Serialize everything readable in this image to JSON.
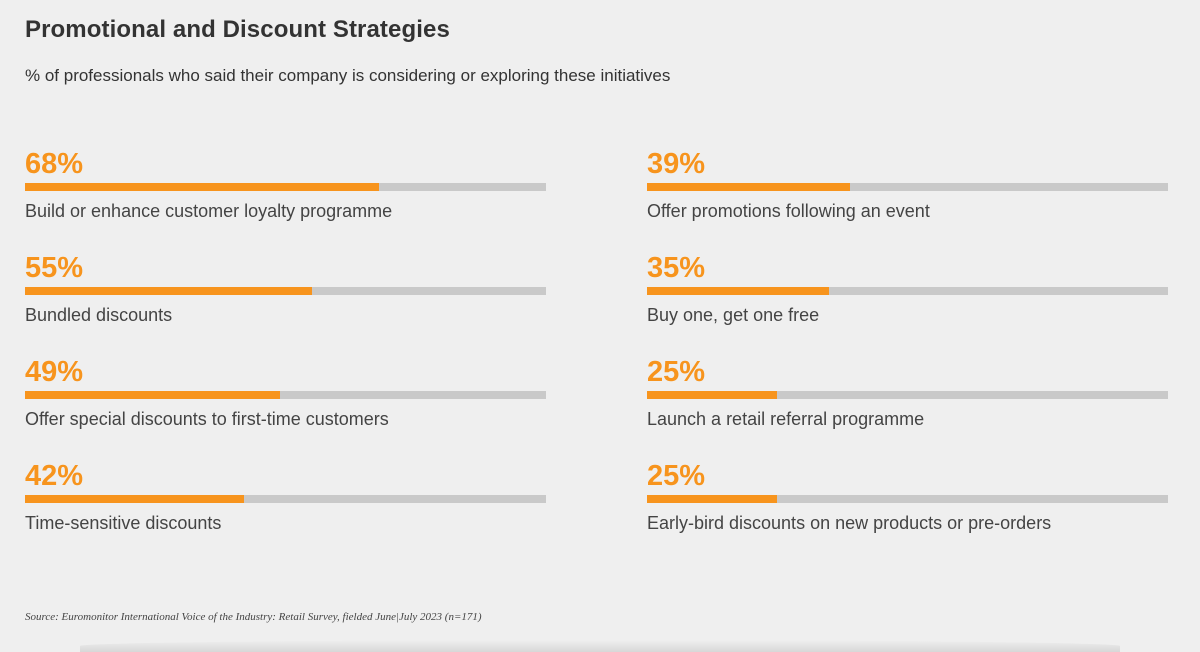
{
  "title": "Promotional and Discount Strategies",
  "subtitle": "% of professionals who said their company is considering or exploring these initiatives",
  "source": "Source: Euromonitor International Voice of the Industry: Retail Survey, fielded June|July 2023 (n=171)",
  "colors": {
    "accent": "#f7941d",
    "track": "#c9c9c9",
    "background": "#efefef"
  },
  "chart_data": {
    "type": "bar",
    "orientation": "horizontal",
    "ylim": [
      0,
      100
    ],
    "unit": "%",
    "categories": [
      "Build or enhance customer loyalty programme",
      "Bundled discounts",
      "Offer special discounts to first-time customers",
      "Time-sensitive discounts",
      "Offer promotions following an event",
      "Buy one, get one free",
      "Launch a retail referral programme",
      "Early-bird discounts on new products or pre-orders"
    ],
    "values": [
      68,
      55,
      49,
      42,
      39,
      35,
      25,
      25
    ],
    "value_labels": [
      "68%",
      "55%",
      "49%",
      "42%",
      "39%",
      "35%",
      "25%",
      "25%"
    ],
    "title": "Promotional and Discount Strategies",
    "legend": "none",
    "grid": false
  }
}
